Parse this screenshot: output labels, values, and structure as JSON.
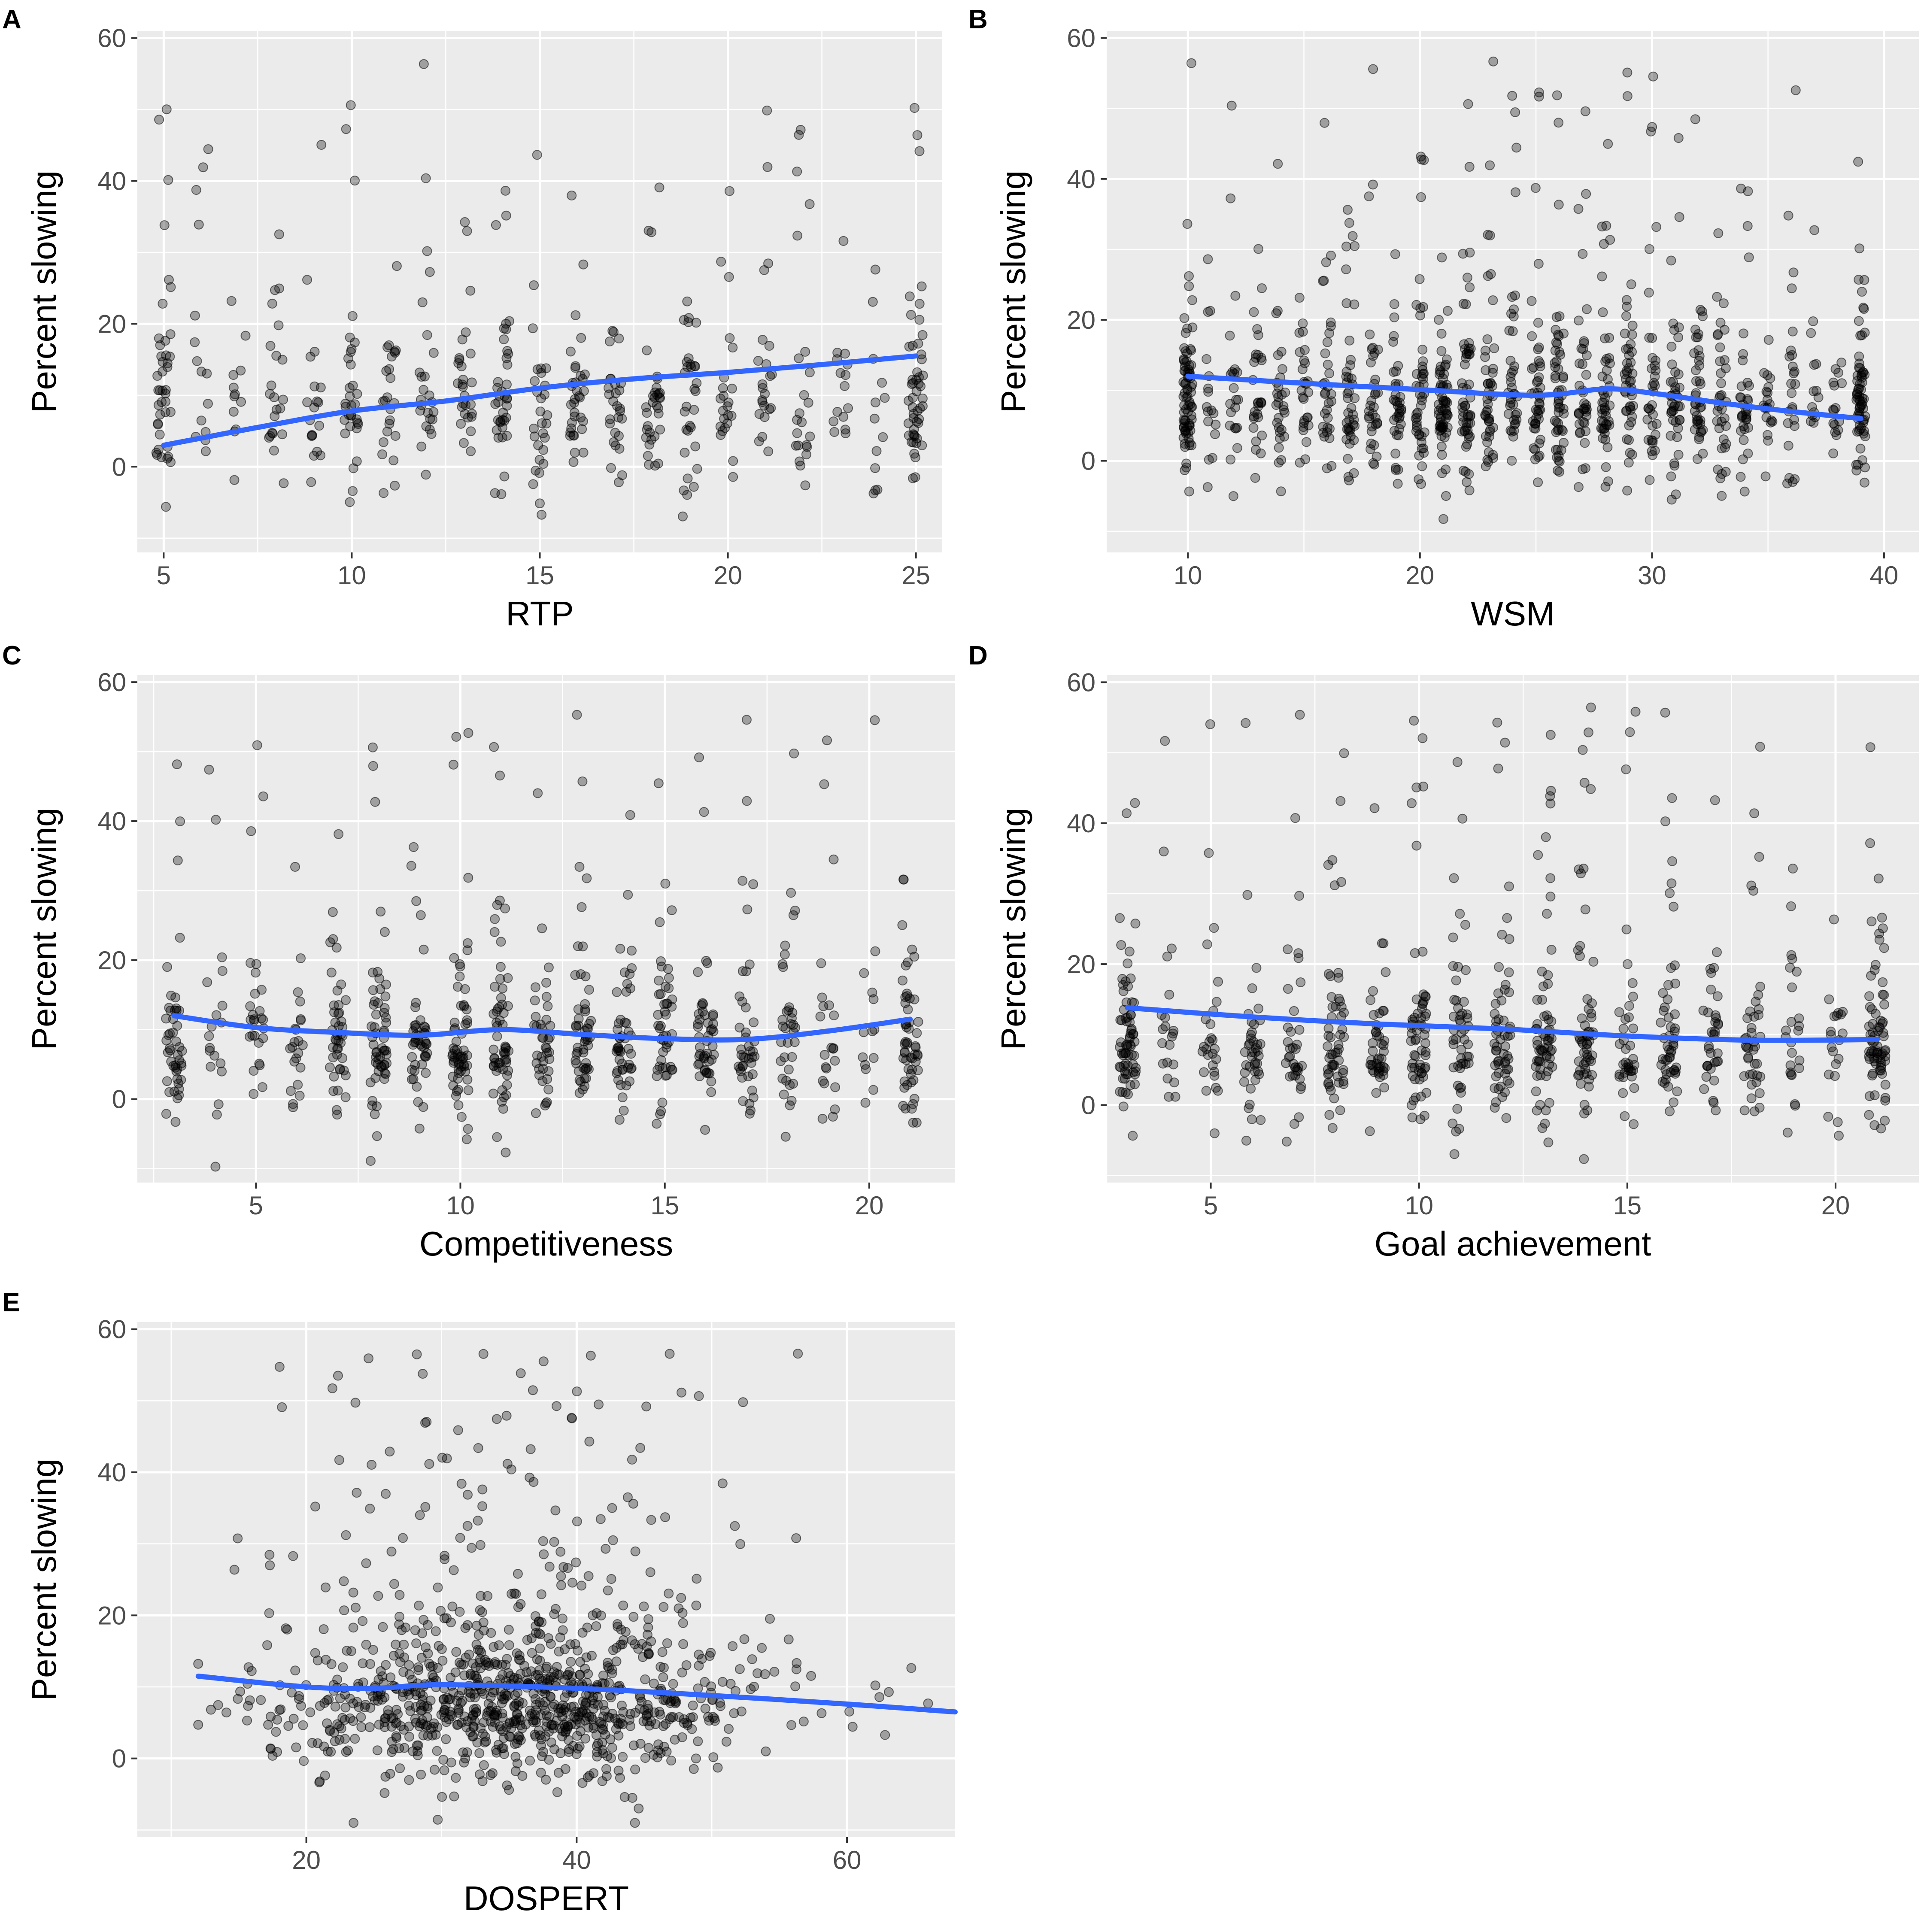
{
  "chart_data": [
    {
      "panel": "A",
      "type": "scatter",
      "xlabel": "RTP",
      "ylabel": "Percent slowing",
      "xlim": [
        4.3,
        25.7
      ],
      "ylim": [
        -12,
        61
      ],
      "xticks": [
        5,
        10,
        15,
        20,
        25
      ],
      "yticks": [
        0,
        20,
        40,
        60
      ],
      "x_range": [
        5,
        25
      ],
      "x_step": 1,
      "n_points": 560,
      "point_spread": {
        "center": 4,
        "spread": 8.5
      },
      "smooth": {
        "x": [
          5,
          7.5,
          10,
          12.5,
          15,
          17.5,
          20,
          22.5,
          25
        ],
        "y": [
          3,
          5.5,
          7.8,
          9.2,
          11,
          12.3,
          13.2,
          14.3,
          15.5
        ]
      },
      "x_extent": [
        4.8,
        25.2
      ]
    },
    {
      "panel": "B",
      "type": "scatter",
      "xlabel": "WSM",
      "ylabel": "Percent slowing",
      "xlim": [
        6.5,
        41.5
      ],
      "ylim": [
        -13,
        61
      ],
      "xticks": [
        10,
        20,
        30,
        40
      ],
      "yticks": [
        0,
        20,
        40,
        60
      ],
      "x_range": [
        10,
        39
      ],
      "x_step": 1,
      "n_points": 1150,
      "point_spread": {
        "center": 4,
        "spread": 8.5
      },
      "smooth": {
        "x": [
          10,
          15,
          20,
          25,
          28,
          30,
          33,
          36,
          39
        ],
        "y": [
          12,
          11,
          10.1,
          9.3,
          10.2,
          9.6,
          8.2,
          7,
          6
        ]
      },
      "x_extent": [
        9.8,
        39.2
      ]
    },
    {
      "panel": "C",
      "type": "scatter",
      "xlabel": "Competitiveness",
      "ylabel": "Percent slowing",
      "xlim": [
        2.1,
        22.1
      ],
      "ylim": [
        -12,
        61
      ],
      "xticks": [
        5,
        10,
        15,
        20
      ],
      "yticks": [
        0,
        20,
        40,
        60
      ],
      "x_range": [
        3,
        21
      ],
      "x_step": 1,
      "n_points": 780,
      "point_spread": {
        "center": 4,
        "spread": 8.5
      },
      "smooth": {
        "x": [
          3,
          5,
          7,
          9,
          11,
          13,
          15,
          17,
          19,
          21
        ],
        "y": [
          12,
          10.3,
          9.6,
          9.2,
          10,
          9.3,
          8.7,
          8.6,
          9.8,
          11.5
        ]
      },
      "x_extent": [
        2.8,
        21.2
      ]
    },
    {
      "panel": "D",
      "type": "scatter",
      "xlabel": "Goal achievement",
      "ylabel": "Percent slowing",
      "xlim": [
        2.5,
        22
      ],
      "ylim": [
        -11,
        61
      ],
      "xticks": [
        5,
        10,
        15,
        20
      ],
      "yticks": [
        0,
        20,
        40,
        60
      ],
      "x_range": [
        3,
        21
      ],
      "x_step": 1,
      "n_points": 870,
      "point_spread": {
        "center": 4,
        "spread": 8.5
      },
      "smooth": {
        "x": [
          3,
          6,
          9,
          12,
          15,
          18,
          21
        ],
        "y": [
          13.8,
          12.5,
          11.5,
          10.8,
          9.8,
          9.2,
          9.3
        ]
      },
      "x_extent": [
        2.8,
        21.2
      ]
    },
    {
      "panel": "E",
      "type": "scatter",
      "xlabel": "DOSPERT",
      "ylabel": "Percent slowing",
      "xlim": [
        7.5,
        68
      ],
      "ylim": [
        -11,
        61
      ],
      "xticks": [
        20,
        40,
        60
      ],
      "yticks": [
        0,
        20,
        40,
        60
      ],
      "x_range": [
        12,
        66
      ],
      "x_step": 0,
      "n_points": 1050,
      "point_spread": {
        "center": 4,
        "spread": 8.5
      },
      "smooth": {
        "x": [
          12,
          20,
          25,
          30,
          40,
          50,
          60,
          68
        ],
        "y": [
          11.5,
          10,
          9.8,
          10.3,
          9.8,
          8.8,
          7.6,
          6.5
        ]
      },
      "x_extent": [
        12,
        68
      ]
    }
  ]
}
